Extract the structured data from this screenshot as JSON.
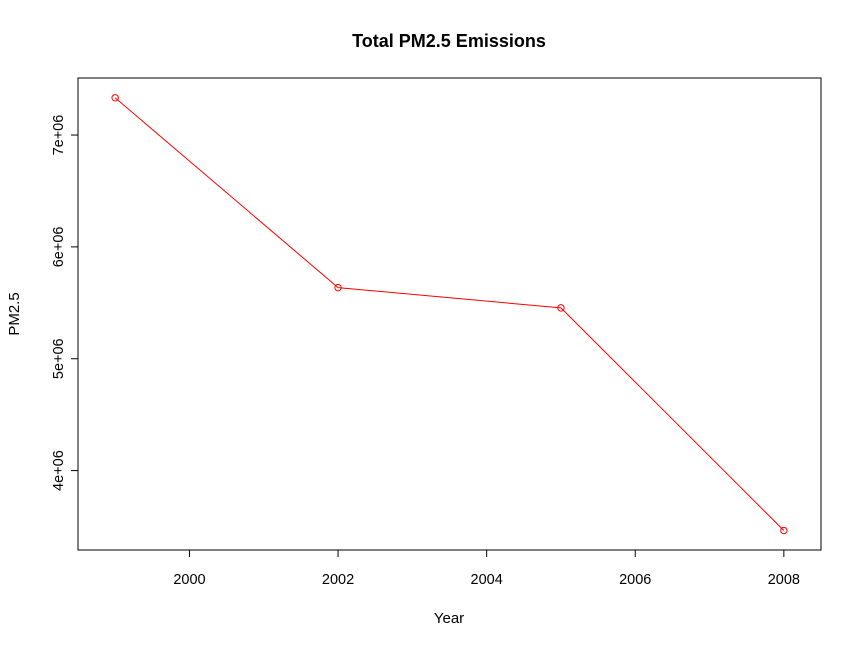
{
  "chart_data": {
    "type": "line",
    "title": "Total PM2.5 Emissions",
    "xlabel": "Year",
    "ylabel": "PM2.5",
    "x": [
      1999,
      2002,
      2005,
      2008
    ],
    "series": [
      {
        "values": [
          7332967,
          5635780,
          5454703,
          3464206
        ],
        "color": "#ff0000"
      }
    ],
    "xlim": [
      1998.5,
      2008.5
    ],
    "ylim": [
      3290000,
      7510000
    ],
    "x_ticks": [
      2000,
      2002,
      2004,
      2006,
      2008
    ],
    "x_tick_labels": [
      "2000",
      "2002",
      "2004",
      "2006",
      "2008"
    ],
    "y_ticks": [
      4000000,
      5000000,
      6000000,
      7000000
    ],
    "y_tick_labels": [
      "4e+06",
      "5e+06",
      "6e+06",
      "7e+06"
    ],
    "markers": "open-circle",
    "grid": false,
    "legend": "none"
  }
}
